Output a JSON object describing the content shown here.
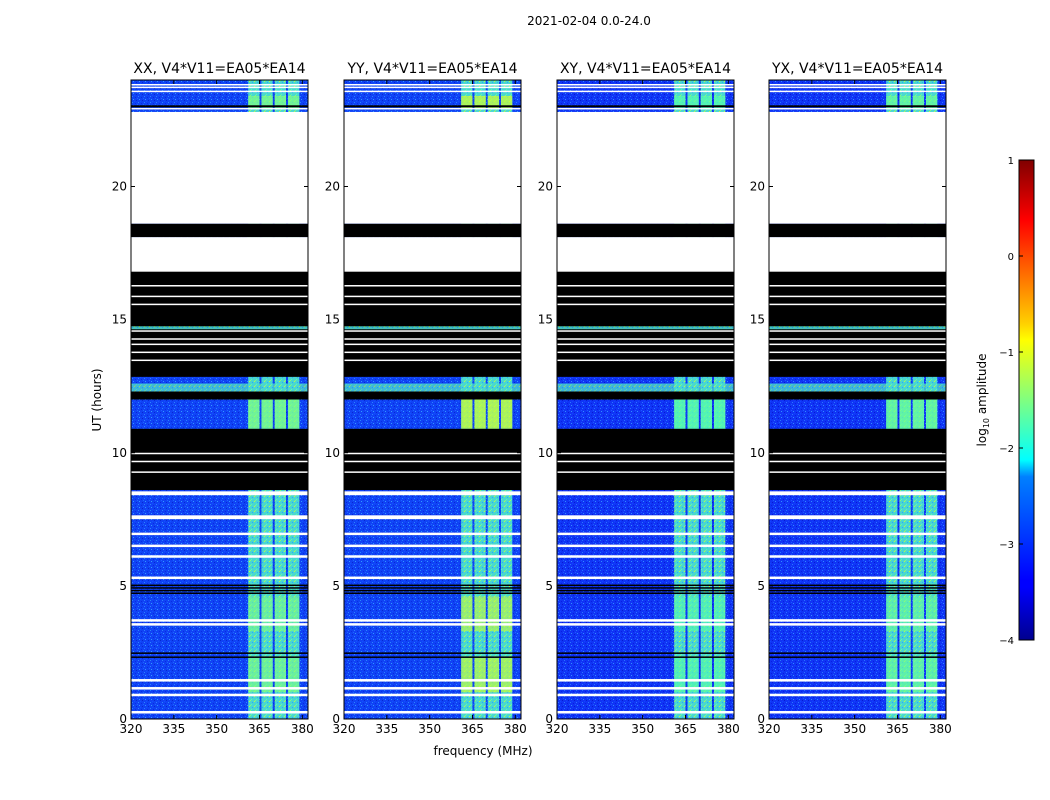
{
  "figure_title": "2021-02-04 0.0-24.0",
  "colorbar": {
    "label_prefix": "log",
    "label_sub": "10",
    "label_suffix": " amplitude",
    "range": [
      -4,
      1
    ],
    "ticks": [
      {
        "value": 1,
        "label": "1"
      },
      {
        "value": 0,
        "label": "0"
      },
      {
        "value": -1,
        "label": "−1"
      },
      {
        "value": -2,
        "label": "−2"
      },
      {
        "value": -3,
        "label": "−3"
      },
      {
        "value": -4,
        "label": "−4"
      }
    ],
    "colormap": "jet"
  },
  "chart_data": {
    "type": "heatmap",
    "xlabel": "frequency (MHz)",
    "ylabel": "UT (hours)",
    "xlim": [
      320,
      382
    ],
    "ylim": [
      0,
      24.0
    ],
    "xticks": [
      320,
      335,
      350,
      365,
      380
    ],
    "yticks": [
      0,
      5,
      10,
      15,
      20
    ],
    "bright_band_mhz": [
      360,
      380
    ],
    "blank_gaps_hours": [
      [
        18.6,
        22.8
      ],
      [
        16.8,
        18.1
      ]
    ],
    "flagged_blocks_hours": [
      [
        12.85,
        16.85
      ],
      [
        8.6,
        10.9
      ],
      [
        12.0,
        12.3
      ]
    ],
    "panels": [
      {
        "title": "XX, V4*V11=EA05*EA14",
        "level_log10": -3.0,
        "band_level_log10": -1.5
      },
      {
        "title": "YY, V4*V11=EA05*EA14",
        "level_log10": -3.0,
        "band_level_log10": -1.1
      },
      {
        "title": "XY, V4*V11=EA05*EA14",
        "level_log10": -3.2,
        "band_level_log10": -1.7
      },
      {
        "title": "YX, V4*V11=EA05*EA14",
        "level_log10": -3.2,
        "band_level_log10": -1.6
      }
    ]
  }
}
